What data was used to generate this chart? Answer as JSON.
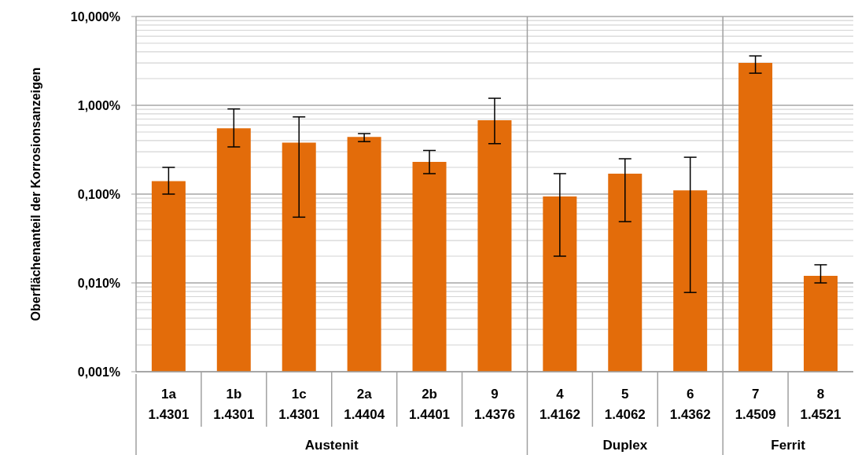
{
  "chart_data": {
    "type": "bar",
    "ylabel": "Oberflächenanteil der Korrosionsanzeigen",
    "categories": [
      "1a\n1.4301",
      "1b\n1.4301",
      "1c\n1.4301",
      "2a\n1.4404",
      "2b\n1.4401",
      "9\n1.4376",
      "4\n1.4162",
      "5\n1.4062",
      "6\n1.4362",
      "7\n1.4509",
      "8\n1.4521"
    ],
    "values": [
      0.14,
      0.55,
      0.38,
      0.44,
      0.23,
      0.68,
      0.094,
      0.17,
      0.11,
      3.0,
      0.012
    ],
    "errors": [
      [
        0.1,
        0.2
      ],
      [
        0.34,
        0.91
      ],
      [
        0.055,
        0.74
      ],
      [
        0.39,
        0.48
      ],
      [
        0.17,
        0.31
      ],
      [
        0.37,
        1.2
      ],
      [
        0.02,
        0.17
      ],
      [
        0.049,
        0.25
      ],
      [
        0.0078,
        0.26
      ],
      [
        2.3,
        3.6
      ],
      [
        0.01,
        0.016
      ]
    ],
    "color": "#e36c0a",
    "log": true,
    "ylim": [
      0.001,
      10
    ],
    "yticks": [
      {
        "value": 0.001,
        "label": "0,001%"
      },
      {
        "value": 0.01,
        "label": "0,010%"
      },
      {
        "value": 0.1,
        "label": "0,100%"
      },
      {
        "value": 1,
        "label": "1,000%"
      },
      {
        "value": 10,
        "label": "10,000%"
      }
    ],
    "grid": "y",
    "annotations": [
      "Austenit",
      "Duplex",
      "Ferrit"
    ]
  }
}
